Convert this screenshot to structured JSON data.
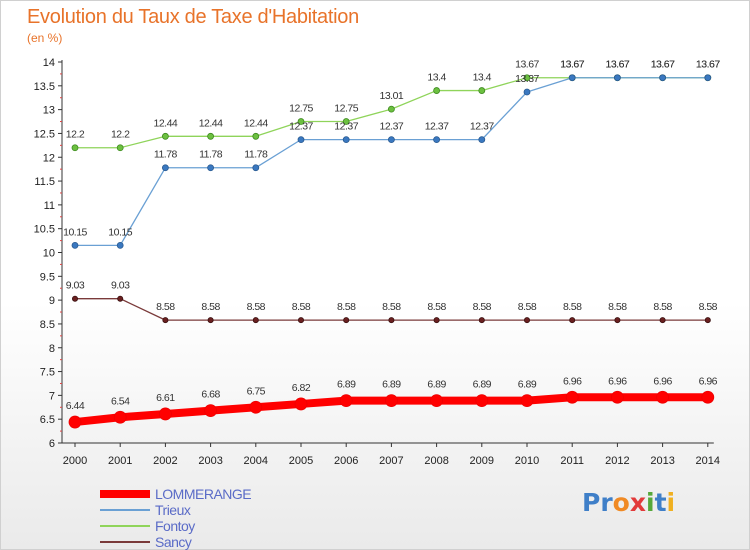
{
  "header": {
    "title": "Evolution du Taux de Taxe d'Habitation",
    "subtitle": "(en %)"
  },
  "logo": {
    "parts": [
      "Pr",
      "o",
      "x",
      "i",
      "t",
      "i"
    ],
    "colors": [
      "#3f7fc8",
      "#f08a24",
      "#e23a3a",
      "#56a83a",
      "#3f7fc8",
      "#f0b020"
    ]
  },
  "chart_data": {
    "type": "line",
    "x": [
      "2000",
      "2001",
      "2002",
      "2003",
      "2004",
      "2005",
      "2006",
      "2007",
      "2008",
      "2009",
      "2010",
      "2011",
      "2012",
      "2013",
      "2014"
    ],
    "ylim": [
      6,
      14
    ],
    "yticks": [
      "6",
      "6.5",
      "7",
      "7.5",
      "8",
      "8.5",
      "9",
      "9.5",
      "10",
      "10.5",
      "11",
      "11.5",
      "12",
      "12.5",
      "13",
      "13.5",
      "14"
    ],
    "grid": false,
    "legend_position": "bottom-left",
    "series": [
      {
        "name": "LOMMERANGE",
        "color": "#ff0000",
        "values": [
          6.44,
          6.54,
          6.61,
          6.68,
          6.75,
          6.82,
          6.89,
          6.89,
          6.89,
          6.89,
          6.89,
          6.96,
          6.96,
          6.96,
          6.96
        ],
        "labels": [
          "6.44",
          "6.54",
          "6.61",
          "6.68",
          "6.75",
          "6.82",
          "6.89",
          "6.89",
          "6.89",
          "6.89",
          "6.89",
          "6.96",
          "6.96",
          "6.96",
          "6.96"
        ]
      },
      {
        "name": "Trieux",
        "color": "#6aa0d4",
        "values": [
          10.15,
          10.15,
          11.78,
          11.78,
          11.78,
          12.37,
          12.37,
          12.37,
          12.37,
          12.37,
          13.37,
          13.67,
          13.67,
          13.67,
          13.67
        ],
        "labels": [
          "10.15",
          "10.15",
          "11.78",
          "11.78",
          "11.78",
          "12.37",
          "12.37",
          "12.37",
          "12.37",
          "12.37",
          "13.37",
          "13.67",
          "13.67",
          "13.67",
          "13.67"
        ]
      },
      {
        "name": "Fontoy",
        "color": "#8fd45a",
        "values": [
          12.2,
          12.2,
          12.44,
          12.44,
          12.44,
          12.75,
          12.75,
          13.01,
          13.4,
          13.4,
          13.67,
          13.67,
          13.67,
          13.67,
          13.67
        ],
        "labels": [
          "12.2",
          "12.2",
          "12.44",
          "12.44",
          "12.44",
          "12.75",
          "12.75",
          "13.01",
          "13.4",
          "13.4",
          "13.67",
          "13.67",
          "13.67",
          "13.67",
          "13.67"
        ]
      },
      {
        "name": "Sancy",
        "color": "#7a3a3a",
        "values": [
          9.03,
          9.03,
          8.58,
          8.58,
          8.58,
          8.58,
          8.58,
          8.58,
          8.58,
          8.58,
          8.58,
          8.58,
          8.58,
          8.58,
          8.58
        ],
        "labels": [
          "9.03",
          "9.03",
          "8.58",
          "8.58",
          "8.58",
          "8.58",
          "8.58",
          "8.58",
          "8.58",
          "8.58",
          "8.58",
          "8.58",
          "8.58",
          "8.58",
          "8.58"
        ]
      }
    ]
  }
}
